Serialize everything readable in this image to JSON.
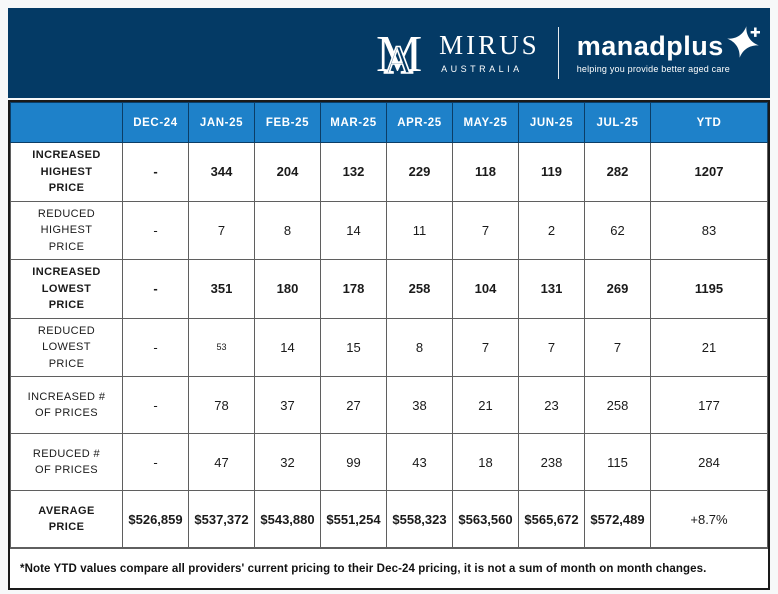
{
  "banner": {
    "background": "#043a65",
    "mirus": {
      "wordmark": "MIRUS",
      "subtitle": "AUSTRALIA"
    },
    "manadplus": {
      "wordmark": "manadplus",
      "tagline": "helping you provide better aged care"
    }
  },
  "table": {
    "header_background": "#1e81c9",
    "columns": [
      "",
      "DEC-24",
      "JAN-25",
      "FEB-25",
      "MAR-25",
      "APR-25",
      "MAY-25",
      "JUN-25",
      "JUL-25",
      "YTD"
    ],
    "rows": [
      {
        "label": "INCREASED HIGHEST PRICE",
        "bold": true,
        "values": [
          "-",
          "344",
          "204",
          "132",
          "229",
          "118",
          "119",
          "282",
          "1207"
        ]
      },
      {
        "label": "REDUCED HIGHEST PRICE",
        "bold": false,
        "values": [
          "-",
          "7",
          "8",
          "14",
          "11",
          "7",
          "2",
          "62",
          "83"
        ]
      },
      {
        "label": "INCREASED LOWEST PRICE",
        "bold": true,
        "values": [
          "-",
          "351",
          "180",
          "178",
          "258",
          "104",
          "131",
          "269",
          "1195"
        ]
      },
      {
        "label": "REDUCED LOWEST PRICE",
        "bold": false,
        "small_value_index": 1,
        "values": [
          "-",
          "53",
          "14",
          "15",
          "8",
          "7",
          "7",
          "7",
          "21"
        ]
      },
      {
        "label": "INCREASED # OF PRICES",
        "bold": false,
        "values": [
          "-",
          "78",
          "37",
          "27",
          "38",
          "21",
          "23",
          "258",
          "177"
        ]
      },
      {
        "label": "REDUCED # OF PRICES",
        "bold": false,
        "values": [
          "-",
          "47",
          "32",
          "99",
          "43",
          "18",
          "238",
          "115",
          "284"
        ]
      },
      {
        "label": "AVERAGE PRICE",
        "bold": false,
        "type": "average",
        "values": [
          "$526,859",
          "$537,372",
          "$543,880",
          "$551,254",
          "$558,323",
          "$563,560",
          "$565,672",
          "$572,489",
          "+8.7%"
        ]
      }
    ],
    "footnote": "*Note YTD values compare all providers' current pricing to their Dec-24 pricing, it is not a sum of month on month changes."
  }
}
